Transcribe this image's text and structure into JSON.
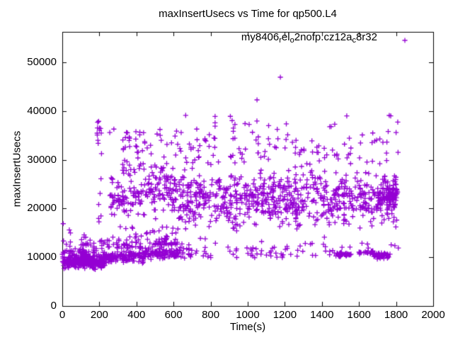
{
  "title": "maxInsertUsecs vs Time for qp500.L4",
  "x_axis": {
    "label": "Time(s)",
    "min": 0,
    "max": 2000,
    "ticks": [
      0,
      200,
      400,
      600,
      800,
      1000,
      1200,
      1400,
      1600,
      1800,
      2000
    ]
  },
  "y_axis": {
    "label": "maxInsertUsecs",
    "min": 0,
    "max": 56250,
    "ticks": [
      0,
      10000,
      20000,
      30000,
      40000,
      50000
    ]
  },
  "legend": {
    "segments": [
      {
        "text": "my8406"
      },
      {
        "text": "r",
        "sub": true
      },
      {
        "text": "el"
      },
      {
        "text": "o",
        "sub": true
      },
      {
        "text": "2nofp.cz12a"
      },
      {
        "text": "c",
        "sub": true
      },
      {
        "text": "8r32"
      }
    ]
  },
  "chart_data": {
    "type": "scatter",
    "marker": "plus",
    "color": "#9400D3",
    "background": "#ffffff",
    "axis_color": "#000000",
    "legend_position": "top-right-inside",
    "grid": false,
    "seed": 42,
    "x_range_of_data": [
      0,
      1812
    ],
    "y_range_of_data": [
      7300,
      47000
    ],
    "outlier_points": [
      [
        5,
        16900
      ],
      [
        38,
        15600
      ],
      [
        44,
        15000
      ],
      [
        118,
        14600
      ],
      [
        126,
        14100
      ],
      [
        150,
        13500
      ],
      [
        196,
        37900
      ],
      [
        200,
        36500
      ],
      [
        256,
        35600
      ],
      [
        278,
        36300
      ],
      [
        641,
        35600
      ],
      [
        725,
        36300
      ],
      [
        823,
        34400
      ],
      [
        824,
        38900
      ],
      [
        824,
        37600
      ],
      [
        824,
        36900
      ],
      [
        1050,
        42300
      ],
      [
        1057,
        34700
      ],
      [
        1057,
        33300
      ],
      [
        1057,
        31400
      ],
      [
        1176,
        46950
      ],
      [
        1469,
        37300
      ],
      [
        1534,
        39000
      ],
      [
        1618,
        35100
      ],
      [
        1763,
        39100
      ],
      [
        1771,
        39000
      ],
      [
        1800,
        35600
      ]
    ],
    "clusters": [
      {
        "n": 320,
        "t": [
          0,
          230
        ],
        "v": [
          7300,
          11000
        ],
        "d": "g"
      },
      {
        "n": 45,
        "t": [
          0,
          230
        ],
        "v": [
          10800,
          15300
        ],
        "d": "low"
      },
      {
        "n": 25,
        "t": [
          100,
          145
        ],
        "v": [
          10500,
          15000
        ],
        "d": "low"
      },
      {
        "n": 16,
        "t": [
          188,
          212
        ],
        "v": [
          13500,
          38000
        ],
        "d": "u"
      },
      {
        "n": 130,
        "t": [
          230,
          440
        ],
        "v": [
          8300,
          11800
        ],
        "d": "g"
      },
      {
        "n": 50,
        "t": [
          230,
          440
        ],
        "v": [
          11800,
          17000
        ],
        "d": "low"
      },
      {
        "n": 85,
        "t": [
          255,
          445
        ],
        "v": [
          16000,
          28500
        ],
        "d": "g"
      },
      {
        "n": 40,
        "t": [
          320,
          445
        ],
        "v": [
          27000,
          35800
        ],
        "d": "u"
      },
      {
        "n": 100,
        "t": [
          440,
          625
        ],
        "v": [
          9000,
          12500
        ],
        "d": "g"
      },
      {
        "n": 55,
        "t": [
          440,
          625
        ],
        "v": [
          12500,
          18500
        ],
        "d": "low"
      },
      {
        "n": 95,
        "t": [
          440,
          625
        ],
        "v": [
          18000,
          30500
        ],
        "d": "g"
      },
      {
        "n": 14,
        "t": [
          440,
          625
        ],
        "v": [
          30000,
          36500
        ],
        "d": "u"
      },
      {
        "n": 720,
        "t": [
          625,
          1812
        ],
        "v": [
          14000,
          29800
        ],
        "d": "g"
      },
      {
        "n": 90,
        "t": [
          625,
          1812
        ],
        "v": [
          29000,
          34500
        ],
        "d": "u"
      },
      {
        "n": 26,
        "t": [
          625,
          1812
        ],
        "v": [
          34000,
          39200
        ],
        "d": "u"
      },
      {
        "n": 25,
        "t": [
          600,
          730
        ],
        "v": [
          9700,
          11900
        ],
        "d": "u"
      },
      {
        "n": 45,
        "t": [
          730,
          1480
        ],
        "v": [
          9900,
          11900
        ],
        "d": "u"
      },
      {
        "n": 32,
        "t": [
          1475,
          1565
        ],
        "v": [
          9900,
          11300
        ],
        "d": "g"
      },
      {
        "n": 22,
        "t": [
          1600,
          1678
        ],
        "v": [
          10500,
          11600
        ],
        "d": "g"
      },
      {
        "n": 48,
        "t": [
          1676,
          1768
        ],
        "v": [
          9500,
          11200
        ],
        "d": "g"
      },
      {
        "n": 28,
        "t": [
          625,
          1812
        ],
        "v": [
          11900,
          14800
        ],
        "d": "low"
      },
      {
        "n": 60,
        "t": [
          1700,
          1812
        ],
        "v": [
          19500,
          26000
        ],
        "d": "g"
      }
    ]
  }
}
